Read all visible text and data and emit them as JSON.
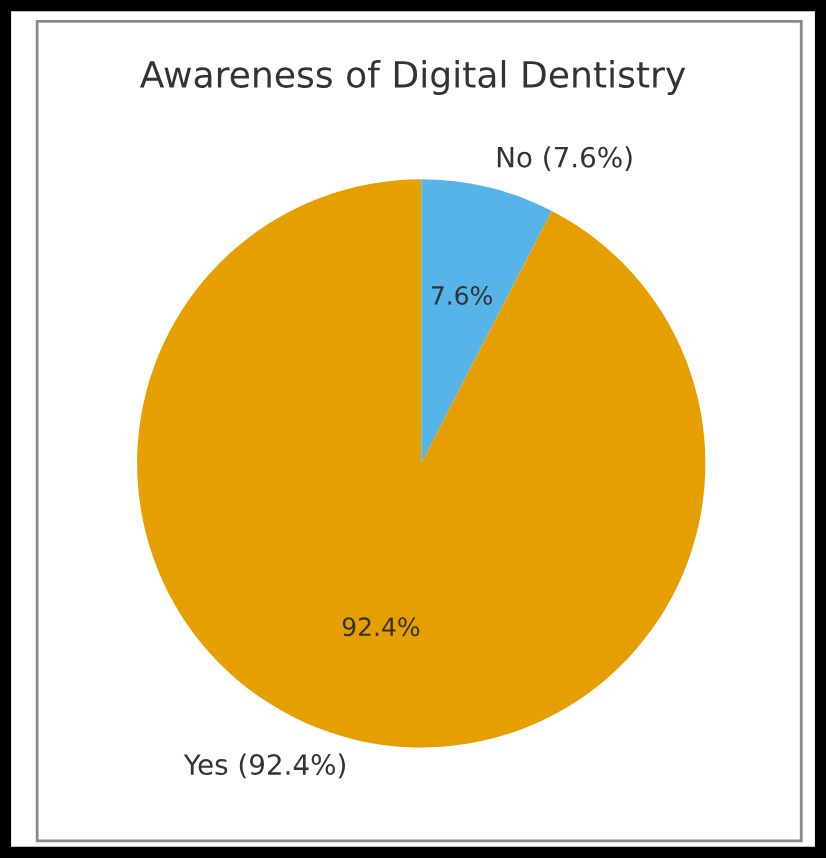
{
  "chart_data": {
    "type": "pie",
    "title": "Awareness of Digital Dentistry",
    "categories": [
      "No (7.6%)",
      "Yes (92.4%)"
    ],
    "values": [
      7.6,
      92.4
    ],
    "colors": [
      "#56b4e9",
      "#e69f00"
    ],
    "value_labels": [
      "7.6%",
      "92.4%"
    ]
  }
}
